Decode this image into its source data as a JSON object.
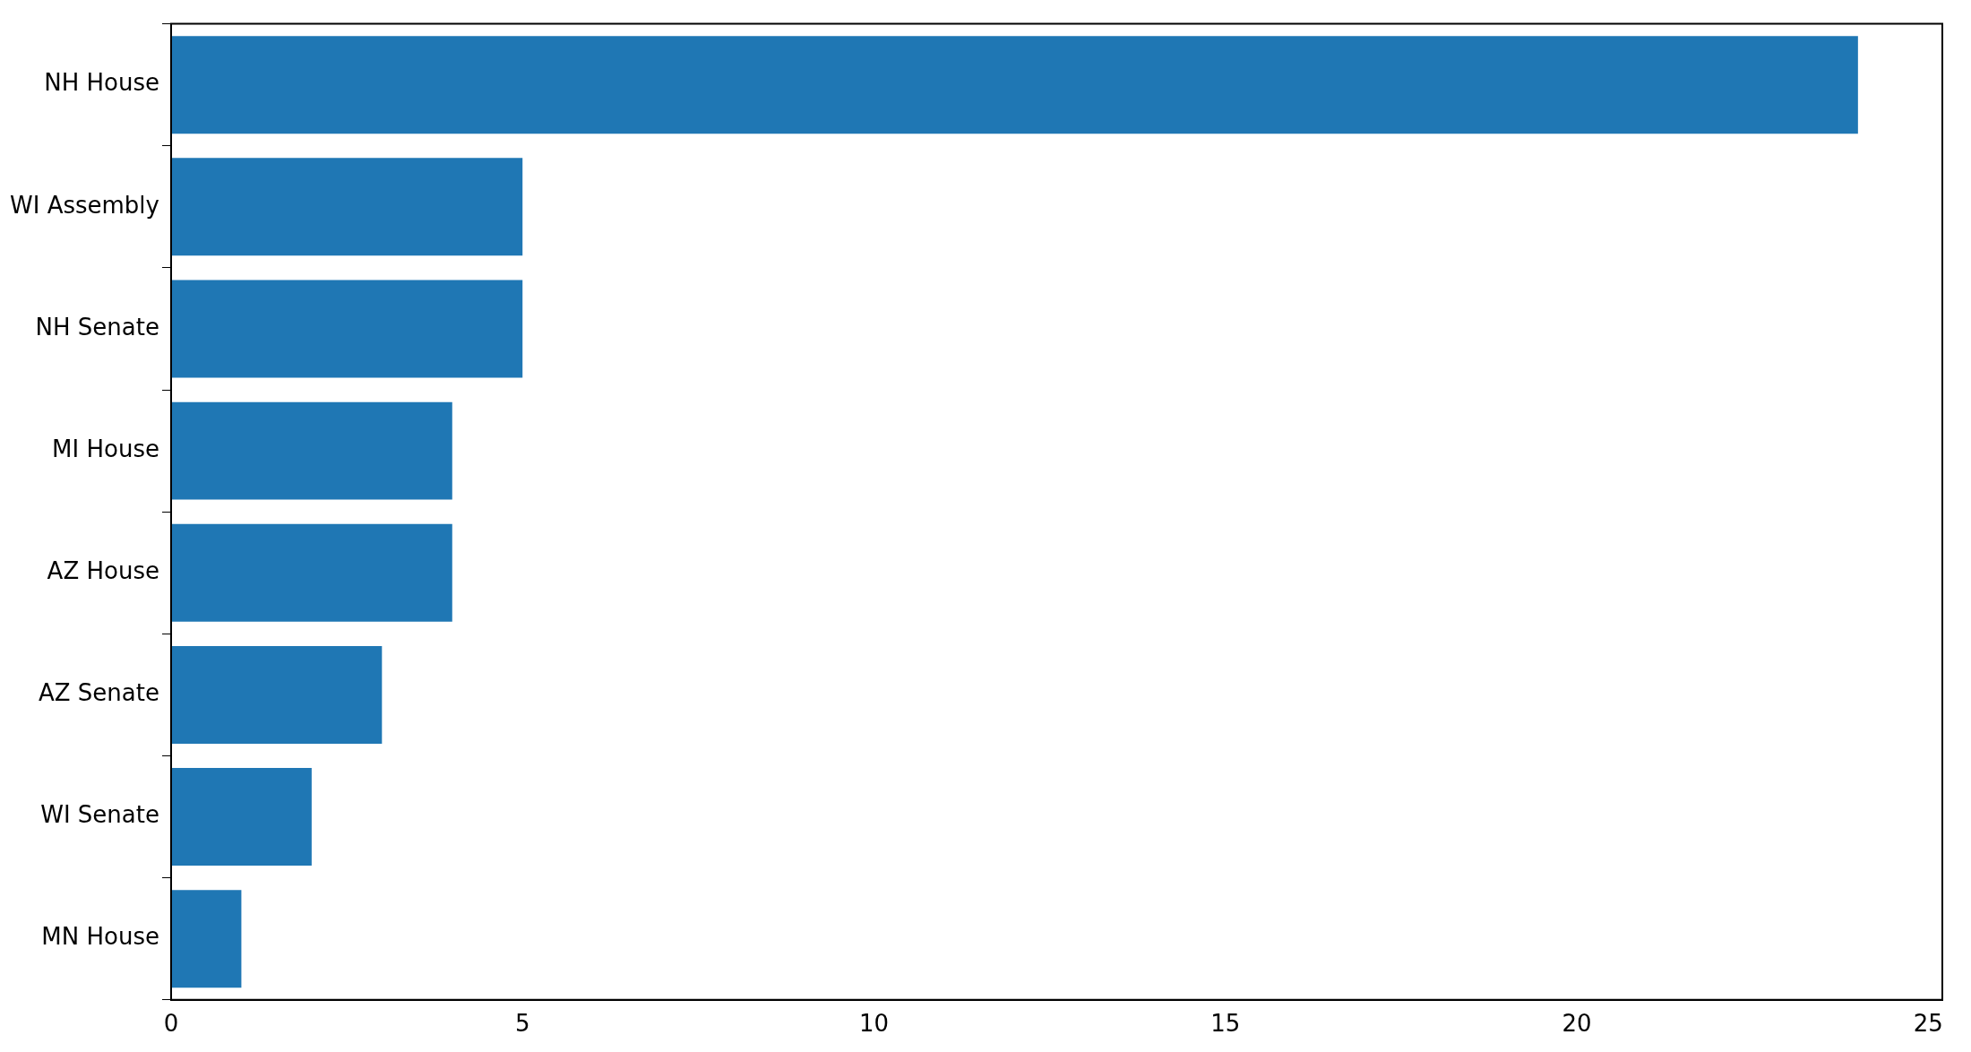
{
  "chart_data": {
    "type": "bar",
    "orientation": "horizontal",
    "categories": [
      "NH House",
      "WI Assembly",
      "NH Senate",
      "MI House",
      "AZ House",
      "AZ Senate",
      "WI Senate",
      "MN House"
    ],
    "values": [
      24,
      5,
      5,
      4,
      4,
      3,
      2,
      1
    ],
    "color": "#1f77b4",
    "xlim": [
      0,
      25.2
    ],
    "xticks": [
      0,
      5,
      10,
      15,
      20,
      25
    ],
    "grid": false,
    "legend": false
  }
}
